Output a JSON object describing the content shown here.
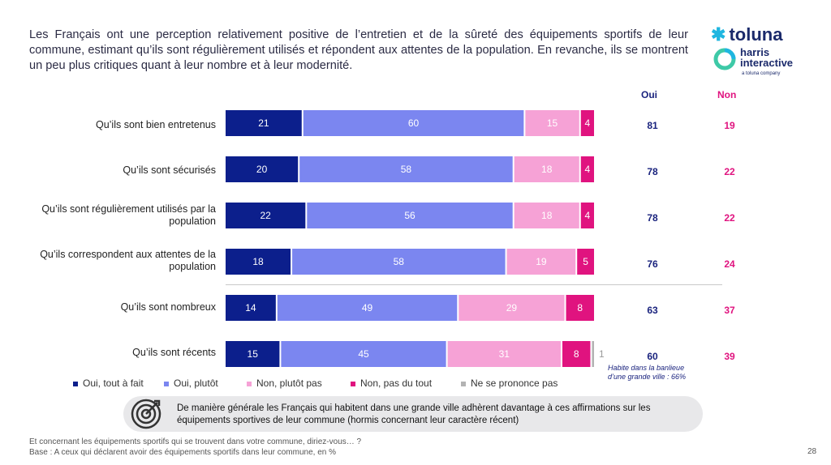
{
  "intro_text": "Les Français ont une perception relativement positive de l’entretien et de la sûreté des équipements sportifs de leur commune, estimant qu’ils sont régulièrement utilisés et répondent aux attentes de la population. En revanche, ils se montrent un peu plus critiques quant à leur nombre et à leur modernité.",
  "logo": {
    "brand": "toluna",
    "harris": "harris interactive",
    "sub": "a toluna company",
    "icon": "asterisk-icon"
  },
  "headers": {
    "oui": "Oui",
    "non": "Non"
  },
  "colors": {
    "oui_tout": "#0c1f8c",
    "oui_plutot": "#7b86f0",
    "non_plutot": "#f6a2d6",
    "non_pas": "#e0137f",
    "nsp": "#b3b3b3",
    "oui_text": "#1a237e",
    "non_text": "#e0137f"
  },
  "chart_data": {
    "type": "bar",
    "orientation": "horizontal",
    "stacked": true,
    "unit": "%",
    "categories": [
      "Qu’ils sont bien entretenus",
      "Qu’ils sont sécurisés",
      "Qu’ils sont régulièrement utilisés par la population",
      "Qu’ils correspondent aux attentes de la population",
      "Qu’ils sont nombreux",
      "Qu’ils sont récents"
    ],
    "series": [
      {
        "name": "Oui, tout à fait",
        "values": [
          21,
          20,
          22,
          18,
          14,
          15
        ]
      },
      {
        "name": "Oui, plutôt",
        "values": [
          60,
          58,
          56,
          58,
          49,
          45
        ]
      },
      {
        "name": "Non, plutôt pas",
        "values": [
          15,
          18,
          18,
          19,
          29,
          31
        ]
      },
      {
        "name": "Non, pas du tout",
        "values": [
          4,
          4,
          4,
          5,
          8,
          8
        ]
      },
      {
        "name": "Ne se prononce pas",
        "values": [
          0,
          0,
          0,
          0,
          0,
          1
        ]
      }
    ],
    "oui_totals": [
      81,
      78,
      78,
      76,
      63,
      60
    ],
    "non_totals": [
      19,
      22,
      22,
      24,
      37,
      39
    ],
    "legend_position": "bottom"
  },
  "note": {
    "line1": "Habite dans la banlieue",
    "line2": "d’une grande ville : 66%"
  },
  "callout": {
    "text": "De manière générale les Français qui habitent dans une grande ville adhèrent davantage à ces affirmations sur les équipements sportives de leur commune (hormis concernant leur caractère récent)",
    "icon": "target-icon"
  },
  "footer": {
    "question": "Et concernant les équipements sportifs qui se trouvent dans votre commune, diriez-vous… ?",
    "base": "Base : A ceux qui déclarent avoir des équipements sportifs dans leur commune, en %"
  },
  "page_number": "28"
}
